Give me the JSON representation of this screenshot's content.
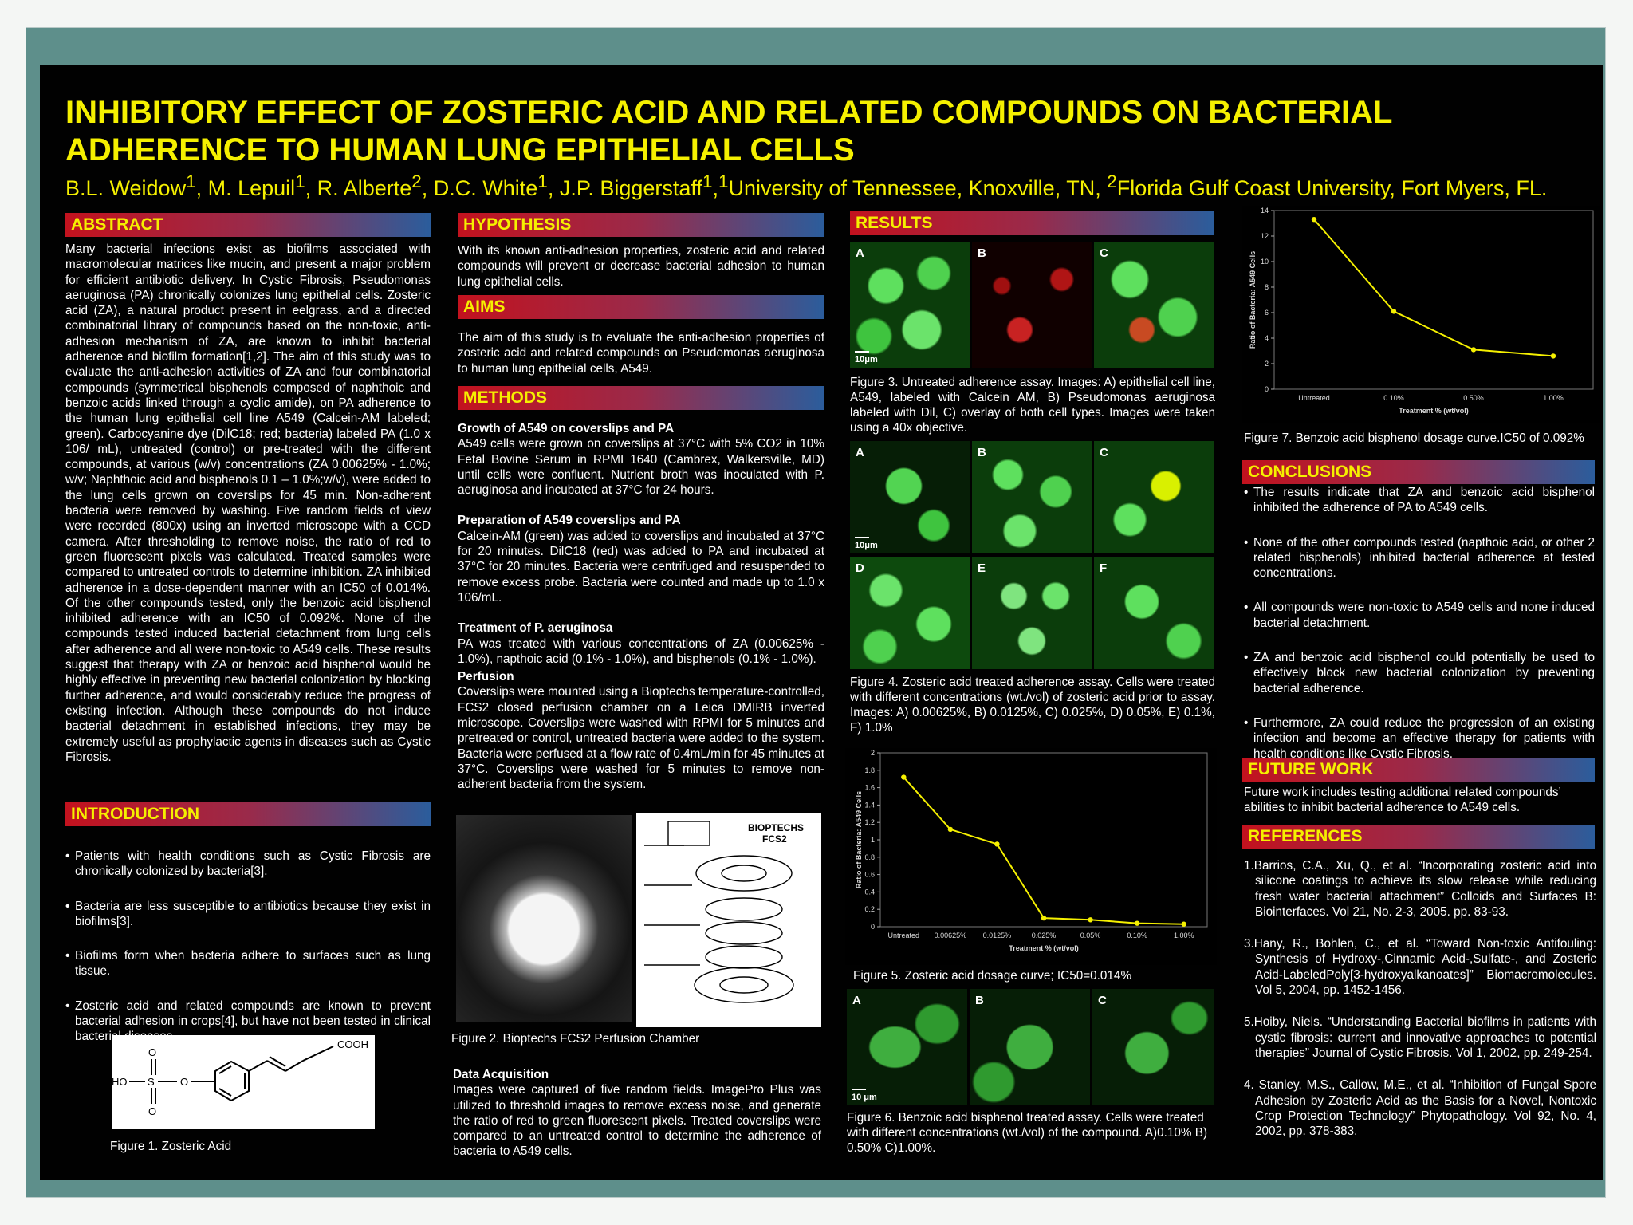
{
  "title": "INHIBITORY EFFECT OF ZOSTERIC ACID AND RELATED COMPOUNDS ON BACTERIAL ADHERENCE TO HUMAN LUNG EPITHELIAL CELLS",
  "authors": {
    "names": "B.L. Weidow",
    "a1": "1",
    "n2": ", M. Lepuil",
    "a2": "1",
    "n3": ", R. Alberte",
    "a3": "2",
    "n4": ", D.C. White",
    "a4": "1",
    "n5": ", J.P. Biggerstaff",
    "a5": "1",
    "n6": ",",
    "a6": "1",
    "aff1": "University of Tennessee, Knoxville, TN, ",
    "a7": "2",
    "aff2": "Florida Gulf Coast University, Fort Myers, FL."
  },
  "abstract": {
    "heading": "ABSTRACT",
    "text": "Many bacterial infections exist as biofilms associated with macromolecular matrices like mucin, and present a major problem for efficient antibiotic delivery.   In Cystic Fibrosis, Pseudomonas aeruginosa (PA) chronically colonizes lung epithelial cells.  Zosteric acid (ZA), a natural product present in eelgrass, and a directed combinatorial library of compounds based on the non-toxic, anti- adhesion mechanism of ZA, are known to inhibit bacterial adherence and biofilm formation[1,2].  The aim of this study was to evaluate the anti-adhesion activities of ZA and four combinatorial compounds (symmetrical bisphenols composed of naphthoic and benzoic acids linked through a cyclic amide), on PA adherence to the human lung epithelial cell line A549 (Calcein-AM labeled; green). Carbocyanine dye (DilC18; red; bacteria) labeled PA (1.0 x 106/ mL), untreated (control) or pre-treated with the different compounds, at various (w/v) concentrations (ZA 0.00625% - 1.0%; w/v; Naphthoic acid and bisphenols 0.1 – 1.0%;w/v), were added to the lung cells grown on coverslips for 45 min. Non-adherent bacteria were removed by washing. Five random fields of view were recorded (800x) using an inverted microscope with a CCD camera.  After thresholding to remove noise, the ratio of red to green fluorescent pixels was calculated.  Treated samples were compared to untreated controls to determine inhibition.  ZA inhibited adherence in a dose-dependent manner with an IC50 of 0.014%.  Of the other compounds tested, only the benzoic acid bisphenol inhibited adherence with an IC50 of 0.092%. None of the compounds tested induced bacterial detachment from lung cells after adherence and all were non-toxic to A549 cells.  These results suggest that therapy with ZA or benzoic acid bisphenol would be highly effective in preventing new bacterial colonization by blocking further adherence, and would considerably reduce the progress of existing infection. Although these compounds do not induce bacterial detachment in established infections, they may be extremely useful as prophylactic agents in diseases such as Cystic Fibrosis."
  },
  "introduction": {
    "heading": "INTRODUCTION",
    "items": [
      "Patients with health conditions such as Cystic Fibrosis are chronically colonized by bacteria[3].",
      "Bacteria are less susceptible to antibiotics because they exist in biofilms[3].",
      "Biofilms form when bacteria adhere to surfaces such as lung tissue.",
      "Zosteric acid and related compounds are known to prevent bacterial adhesion in crops[4], but have not been tested in clinical bacterial diseases."
    ]
  },
  "fig1": {
    "caption": "Figure 1. Zosteric Acid",
    "cooh": "COOH",
    "ho": "HO",
    "s": "S",
    "o": "O"
  },
  "hypothesis": {
    "heading": "HYPOTHESIS",
    "text": "With its known anti-adhesion properties, zosteric acid and related compounds will prevent or decrease bacterial adhesion to human lung epithelial cells."
  },
  "aims": {
    "heading": "AIMS",
    "text": "The aim of this study is to evaluate the anti-adhesion properties of zosteric acid and related compounds on Pseudomonas aeruginosa to human lung epithelial cells, A549."
  },
  "methods": {
    "heading": "METHODS",
    "s1_title": "Growth of A549 on coverslips and PA",
    "s1_text": "A549 cells were grown on coverslips at 37°C with 5% CO2 in 10% Fetal Bovine Serum in RPMI 1640 (Cambrex, Walkersville, MD) until cells were confluent. Nutrient broth was inoculated with P. aeruginosa and incubated at 37°C for 24 hours.",
    "s2_title": "Preparation of A549 coverslips and PA",
    "s2_text": "Calcein-AM (green) was added to coverslips and incubated at 37°C for 20 minutes. DilC18 (red) was added to PA and incubated at 37°C for 20 minutes. Bacteria were centrifuged and resuspended to remove excess probe. Bacteria were counted and made up to 1.0 x 106/mL.",
    "s3_title": "Treatment of P. aeruginosa",
    "s3_text": "PA was treated with various concentrations of ZA (0.00625% - 1.0%), napthoic acid (0.1% - 1.0%), and bisphenols (0.1% - 1.0%).",
    "s4_title": "Perfusion",
    "s4_text": "Coverslips were mounted using a Bioptechs temperature-controlled, FCS2 closed perfusion chamber on a Leica DMIRB inverted microscope. Coverslips were washed with RPMI for 5 minutes and pretreated or control, untreated  bacteria were added to the system. Bacteria were perfused at a flow rate of 0.4mL/min for 45 minutes at 37°C. Coverslips were washed for 5 minutes to  remove non-adherent bacteria from the system.",
    "fig2_caption": "Figure 2. Bioptechs FCS2 Perfusion Chamber",
    "fig2_label1": "BIOPTECHS",
    "fig2_label2": "FCS2",
    "s5_title": "Data Acquisition",
    "s5_text": "Images were captured of five random fields. ImagePro Plus was utilized to threshold images to remove excess noise, and generate the ratio of red to green fluorescent pixels. Treated coverslips were compared to an untreated control to determine the adherence of bacteria to A549 cells."
  },
  "results": {
    "heading": "RESULTS",
    "fig3_labels": [
      "A",
      "B",
      "C"
    ],
    "scale": "10μm",
    "fig3_caption": "Figure 3. Untreated adherence assay.  Images: A) epithelial cell line, A549, labeled with Calcein AM, B) Pseudomonas aeruginosa labeled with Dil, C) overlay of both cell types. Images were taken using a 40x objective.",
    "fig4_labels": [
      "A",
      "B",
      "C",
      "D",
      "E",
      "F"
    ],
    "fig4_caption": "Figure 4. Zosteric acid treated adherence assay. Cells were treated with different concentrations (wt./vol) of zosteric acid prior to assay. Images: A) 0.00625%, B) 0.0125%, C) 0.025%, D) 0.05%, E) 0.1%, F) 1.0%",
    "fig5_caption": "Figure 5.  Zosteric acid dosage curve; IC50=0.014%",
    "fig6_labels": [
      "A",
      "B",
      "C"
    ],
    "fig6_scale": "10 μm",
    "fig6_caption": "Figure 6. Benzoic acid bisphenol  treated assay.  Cells were treated with different concentrations (wt./vol) of the compound. A)0.10% B) 0.50% C)1.00%.",
    "fig7_caption": "Figure 7. Benzoic acid bisphenol dosage curve.IC50 of 0.092%"
  },
  "conclusions": {
    "heading": "CONCLUSIONS",
    "items": [
      "The results indicate that ZA and benzoic acid bisphenol inhibited the adherence of PA to A549 cells.",
      "None of the other compounds tested (napthoic acid, or other 2 related bisphenols) inhibited bacterial adherence at tested concentrations.",
      "All compounds were non-toxic to A549 cells and none induced bacterial detachment.",
      "ZA and benzoic acid bisphenol could potentially be used to effectively block new bacterial colonization by preventing bacterial adherence.",
      "Furthermore, ZA could reduce the progression of an existing infection and become an effective therapy for patients with health conditions like Cystic Fibrosis."
    ]
  },
  "future": {
    "heading": "FUTURE WORK",
    "text": "Future work includes testing additional related compounds’ abilities to inhibit bacterial adherence to A549 cells."
  },
  "references": {
    "heading": "REFERENCES",
    "items": [
      "1.Barrios, C.A., Xu, Q., et al. “Incorporating zosteric acid into silicone coatings to achieve its slow release while reducing fresh water bacterial attachment” Colloids and Surfaces B: Biointerfaces. Vol 21, No. 2-3, 2005. pp. 83-93.",
      "3.Hany, R., Bohlen, C., et al. “Toward Non-toxic Antifouling: Synthesis of Hydroxy-,Cinnamic Acid-,Sulfate-, and Zosteric Acid-LabeledPoly[3-hydroxyalkanoates]” Biomacromolecules. Vol 5, 2004, pp. 1452-1456.",
      "5.Hoiby, Niels. “Understanding Bacterial biofilms in patients with cystic fibrosis: current and innovative approaches to potential therapies” Journal of Cystic Fibrosis. Vol 1, 2002, pp. 249-254.",
      "4. Stanley, M.S., Callow, M.E., et al. “Inhibition of Fungal Spore Adhesion by Zosteric Acid as the Basis for a Novel, Nontoxic Crop Protection Technology” Phytopathology. Vol 92, No. 4, 2002, pp. 378-383."
    ]
  },
  "chart_data": [
    {
      "type": "line",
      "id": "fig5",
      "categories": [
        "Untreated",
        "0.00625%",
        "0.0125%",
        "0.025%",
        "0.05%",
        "0.10%",
        "1.00%"
      ],
      "values": [
        1.72,
        1.12,
        0.95,
        0.1,
        0.08,
        0.04,
        0.03
      ],
      "ylim": [
        0,
        2
      ],
      "yticks": [
        "0",
        "0.2",
        "0.4",
        "0.6",
        "0.8",
        "1",
        "1.2",
        "1.4",
        "1.6",
        "1.8",
        "2"
      ],
      "xlabel": "Treatment % (wt/vol)",
      "ylabel": "Ratio of Bacteria: A549 Cells",
      "grid": false,
      "color": "#f5f000"
    },
    {
      "type": "line",
      "id": "fig7",
      "categories": [
        "Untreated",
        "0.10%",
        "0.50%",
        "1.00%"
      ],
      "values": [
        13.3,
        6.1,
        3.1,
        2.6
      ],
      "ylim": [
        0,
        14
      ],
      "yticks": [
        "0",
        "2",
        "4",
        "6",
        "8",
        "10",
        "12",
        "14"
      ],
      "xlabel": "Treatment % (wt/vol)",
      "ylabel": "Ratio of Bacteria: A549 Cells",
      "grid": false,
      "color": "#f5f000"
    }
  ]
}
